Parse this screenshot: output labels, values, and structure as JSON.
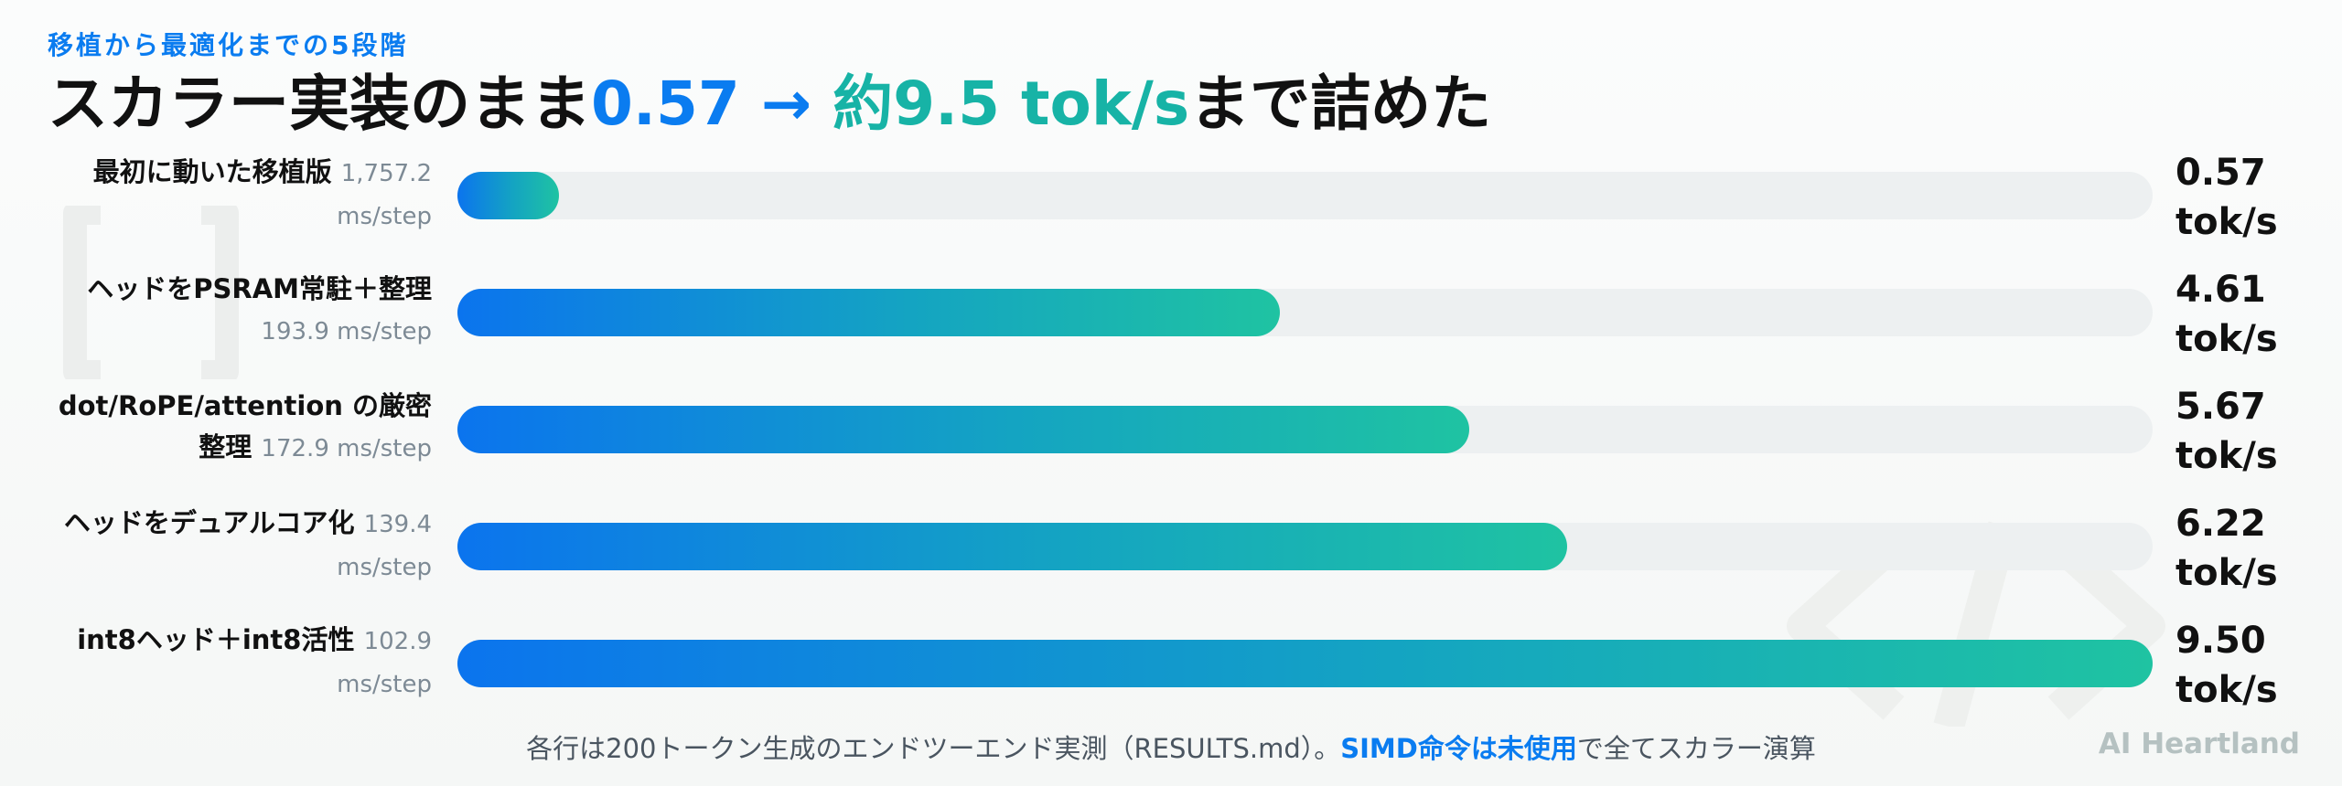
{
  "header": {
    "subtitle": "移植から最適化までの5段階",
    "headline_prefix": "スカラー実装のまま",
    "headline_start": "0.57",
    "headline_arrow": " → ",
    "headline_end": "約9.5 tok/s",
    "headline_suffix": "まで詰めた"
  },
  "chart_data": {
    "type": "bar",
    "orientation": "horizontal",
    "unit": "tok/s",
    "xlim": [
      0,
      9.5
    ],
    "grid": false,
    "rows": [
      {
        "name": "最初に動いた移植版",
        "ms": "1,757.2 ms/step",
        "value": 0.57,
        "value_label": "0.57 tok/s"
      },
      {
        "name": "ヘッドをPSRAM常駐＋整理",
        "ms": "193.9 ms/step",
        "value": 4.61,
        "value_label": "4.61 tok/s"
      },
      {
        "name": "dot/RoPE/attention の厳密整理",
        "ms": "172.9 ms/step",
        "value": 5.67,
        "value_label": "5.67 tok/s"
      },
      {
        "name": "ヘッドをデュアルコア化",
        "ms": "139.4 ms/step",
        "value": 6.22,
        "value_label": "6.22 tok/s"
      },
      {
        "name": "int8ヘッド＋int8活性",
        "ms": "102.9 ms/step",
        "value": 9.5,
        "value_label": "9.50 tok/s"
      }
    ]
  },
  "footer": {
    "note_prefix": "各行は200トークン生成のエンドツーエンド実測（RESULTS.md）。",
    "note_highlight": "SIMD命令は未使用",
    "note_suffix": "で全てスカラー演算",
    "brand": "AI Heartland"
  },
  "colors": {
    "accent_blue": "#0a7cf0",
    "accent_teal": "#17b3a6",
    "track": "#edf0f1"
  }
}
